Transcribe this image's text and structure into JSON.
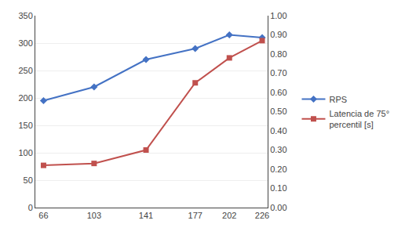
{
  "chart_data": {
    "type": "line",
    "x": [
      66,
      103,
      141,
      177,
      202,
      226
    ],
    "xlim": [
      60,
      230
    ],
    "xticks": [
      66,
      103,
      141,
      177,
      202,
      226
    ],
    "ylim": [
      0,
      350
    ],
    "yticks": [
      0,
      50,
      100,
      150,
      200,
      250,
      300,
      350
    ],
    "y2lim": [
      0.0,
      1.0
    ],
    "y2ticks": [
      {
        "value": 0.0,
        "label": "0.00"
      },
      {
        "value": 0.1,
        "label": "0.10"
      },
      {
        "value": 0.2,
        "label": "0.20"
      },
      {
        "value": 0.3,
        "label": "0.30"
      },
      {
        "value": 0.4,
        "label": "0.40"
      },
      {
        "value": 0.5,
        "label": "0.50"
      },
      {
        "value": 0.6,
        "label": "0.60"
      },
      {
        "value": 0.7,
        "label": "0.70"
      },
      {
        "value": 0.8,
        "label": "0.80"
      },
      {
        "value": 0.9,
        "label": "0.90"
      },
      {
        "value": 1.0,
        "label": "1.00"
      }
    ],
    "grid": true,
    "legend": "right",
    "series": [
      {
        "name": "RPS",
        "color": "#4472C4",
        "marker": "diamond",
        "values": [
          195,
          220,
          270,
          290,
          315,
          310
        ]
      },
      {
        "name": "Latencia de 75°\npercentil [s]",
        "color": "#C0504D",
        "marker": "square",
        "axis": "y2",
        "values": [
          0.22,
          0.23,
          0.3,
          0.65,
          0.78,
          0.87
        ]
      }
    ]
  }
}
